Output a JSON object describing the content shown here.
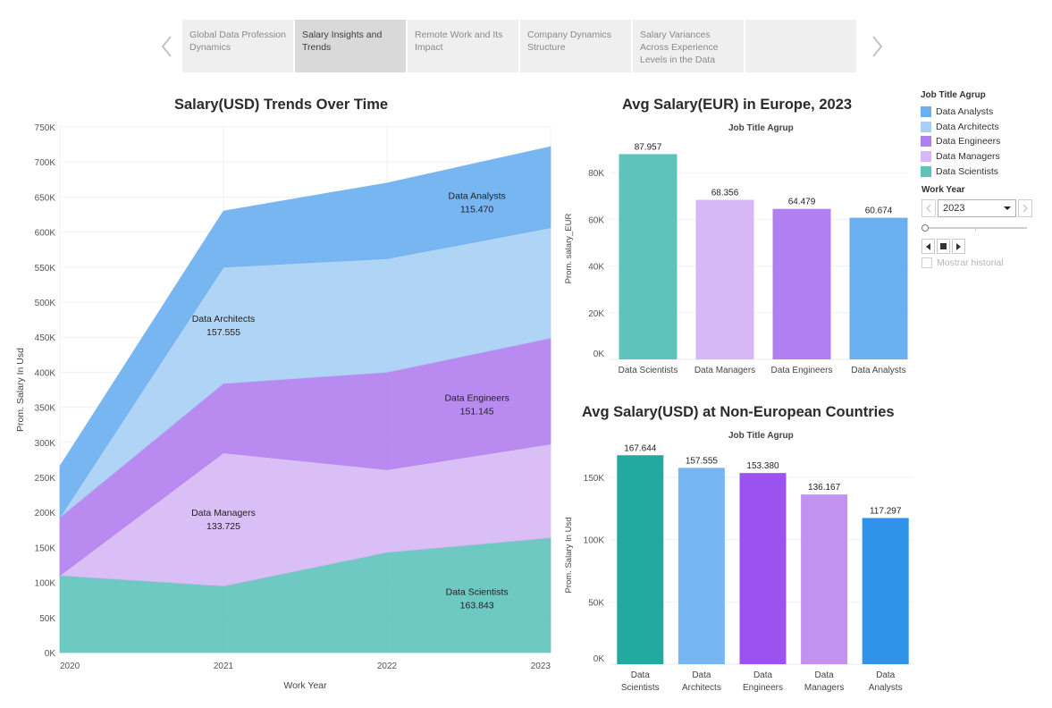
{
  "story": {
    "points": [
      {
        "label": "Global Data Profession Dynamics"
      },
      {
        "label": "Salary Insights and Trends"
      },
      {
        "label": "Remote Work and Its Impact"
      },
      {
        "label": "Company Dynamics Structure"
      },
      {
        "label": "Salary Variances Across Experience Levels in the Data"
      },
      {
        "label": ""
      }
    ],
    "active_index": 1
  },
  "colors": {
    "Data Analysts": "#6aaff0",
    "Data Architects": "#a8d0f5",
    "Data Engineers": "#b27ff0",
    "Data Managers": "#d7b8f6",
    "Data Scientists": "#5ec4bb"
  },
  "legend": {
    "title": "Job Title Agrup",
    "items": [
      "Data Analysts",
      "Data Architects",
      "Data Engineers",
      "Data Managers",
      "Data Scientists"
    ]
  },
  "filter": {
    "title": "Work Year",
    "value": "2023",
    "history_label": "Mostrar historial"
  },
  "chart_data": [
    {
      "type": "area",
      "title": "Salary(USD) Trends Over Time",
      "xlabel": "Work Year",
      "ylabel": "Prom. Salary In Usd",
      "x": [
        "2020",
        "2021",
        "2022",
        "2023"
      ],
      "ylim": [
        0,
        750000
      ],
      "yticks": [
        "0K",
        "50K",
        "100K",
        "150K",
        "200K",
        "250K",
        "300K",
        "350K",
        "400K",
        "450K",
        "500K",
        "550K",
        "600K",
        "650K",
        "700K",
        "750K"
      ],
      "stacked": true,
      "series": [
        {
          "name": "Data Scientists",
          "values": [
            110000,
            95000,
            143000,
            163843
          ],
          "label": "163.843"
        },
        {
          "name": "Data Managers",
          "values": [
            0,
            190000,
            118000,
            133725
          ],
          "label": "133.725"
        },
        {
          "name": "Data Engineers",
          "values": [
            83000,
            99000,
            139000,
            151145
          ],
          "label": "151.145"
        },
        {
          "name": "Data Architects",
          "values": [
            0,
            166000,
            162000,
            157555
          ],
          "label": "157.555"
        },
        {
          "name": "Data Analysts",
          "values": [
            73000,
            80000,
            108000,
            115470
          ],
          "label": "115.470"
        }
      ],
      "grid": true
    },
    {
      "type": "bar",
      "title": "Avg Salary(EUR) in Europe, 2023",
      "subtitle": "Job Title Agrup",
      "ylabel": "Prom. salary_EUR",
      "categories": [
        "Data Scientists",
        "Data Managers",
        "Data Engineers",
        "Data Analysts"
      ],
      "values": [
        87957,
        68356,
        64479,
        60674
      ],
      "labels": [
        "87.957",
        "68.356",
        "64.479",
        "60.674"
      ],
      "ylim": [
        0,
        95000
      ],
      "yticks": [
        "0K",
        "20K",
        "40K",
        "60K",
        "80K"
      ],
      "grid": true
    },
    {
      "type": "bar",
      "title": "Avg Salary(USD) at Non-European Countries",
      "subtitle": "Job Title Agrup",
      "ylabel": "Prom. Salary In Usd",
      "categories": [
        "Data Scientists",
        "Data Architects",
        "Data Engineers",
        "Data Managers",
        "Data Analysts"
      ],
      "values": [
        167644,
        157555,
        153380,
        136167,
        117297
      ],
      "labels": [
        "167.644",
        "157.555",
        "153.380",
        "136.167",
        "117.297"
      ],
      "ylim": [
        0,
        175000
      ],
      "yticks": [
        "0K",
        "50K",
        "100K",
        "150K"
      ],
      "bar_colors": [
        "#22a9a0",
        "#76b7f3",
        "#9b52ef",
        "#c292f1",
        "#2f93ea"
      ],
      "grid": true
    }
  ]
}
